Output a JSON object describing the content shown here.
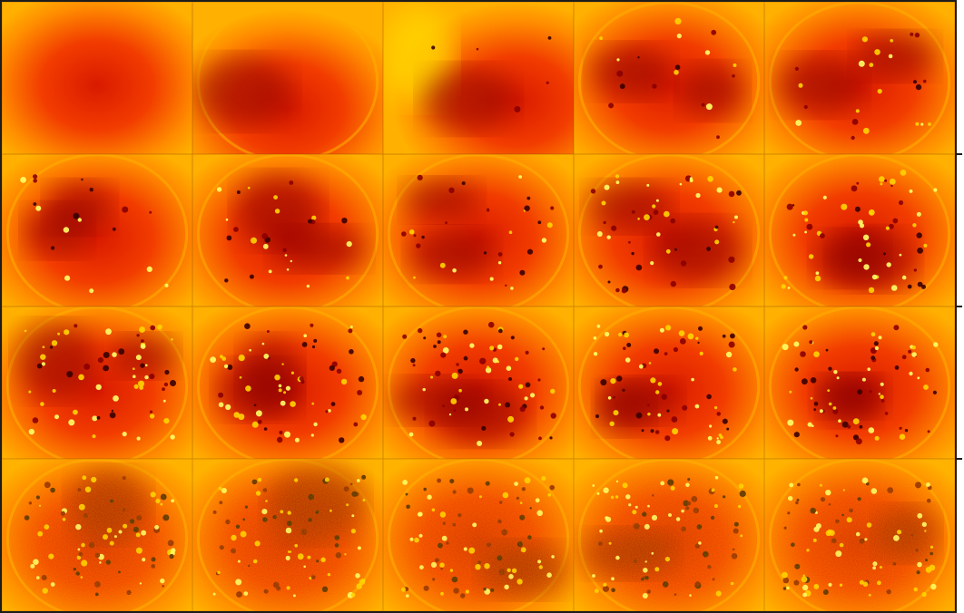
{
  "mosaic": {
    "rows": 4,
    "columns": 5,
    "colormap": {
      "name": "hot",
      "stops": [
        "#3a0000",
        "#8b0000",
        "#d91a00",
        "#f23c00",
        "#ff6a00",
        "#ff8c00",
        "#ffb000",
        "#ffd400",
        "#ffff66"
      ]
    },
    "frame_color": "#1c1c1c",
    "row_tick_marks": 3,
    "tiles": [
      {
        "id": "r1c1",
        "row": 1,
        "col": 1,
        "pattern": "smooth-vignette",
        "speckle_density": 0.0
      },
      {
        "id": "r1c2",
        "row": 1,
        "col": 2,
        "pattern": "smooth-rings",
        "speckle_density": 0.0
      },
      {
        "id": "r1c3",
        "row": 1,
        "col": 3,
        "pattern": "smooth-bright-left",
        "speckle_density": 0.05
      },
      {
        "id": "r1c4",
        "row": 1,
        "col": 4,
        "pattern": "ringed-disk",
        "speckle_density": 0.2
      },
      {
        "id": "r1c5",
        "row": 1,
        "col": 5,
        "pattern": "ringed-disk",
        "speckle_density": 0.25
      },
      {
        "id": "r2c1",
        "row": 2,
        "col": 1,
        "pattern": "patchy-disk",
        "speckle_density": 0.2
      },
      {
        "id": "r2c2",
        "row": 2,
        "col": 2,
        "pattern": "patchy-disk",
        "speckle_density": 0.3
      },
      {
        "id": "r2c3",
        "row": 2,
        "col": 3,
        "pattern": "patchy-disk",
        "speckle_density": 0.35
      },
      {
        "id": "r2c4",
        "row": 2,
        "col": 4,
        "pattern": "speckled-disk",
        "speckle_density": 0.55
      },
      {
        "id": "r2c5",
        "row": 2,
        "col": 5,
        "pattern": "speckled-disk",
        "speckle_density": 0.65
      },
      {
        "id": "r3c1",
        "row": 3,
        "col": 1,
        "pattern": "speckled-disk",
        "speckle_density": 0.7
      },
      {
        "id": "r3c2",
        "row": 3,
        "col": 2,
        "pattern": "speckled-disk",
        "speckle_density": 0.7
      },
      {
        "id": "r3c3",
        "row": 3,
        "col": 3,
        "pattern": "speckled-disk",
        "speckle_density": 0.75
      },
      {
        "id": "r3c4",
        "row": 3,
        "col": 4,
        "pattern": "speckled-disk",
        "speckle_density": 0.75
      },
      {
        "id": "r3c5",
        "row": 3,
        "col": 5,
        "pattern": "speckled-disk",
        "speckle_density": 0.8
      },
      {
        "id": "r4c1",
        "row": 4,
        "col": 1,
        "pattern": "speckled-noisy",
        "speckle_density": 0.85
      },
      {
        "id": "r4c2",
        "row": 4,
        "col": 2,
        "pattern": "speckled-noisy",
        "speckle_density": 0.9
      },
      {
        "id": "r4c3",
        "row": 4,
        "col": 3,
        "pattern": "speckled-noisy",
        "speckle_density": 0.9
      },
      {
        "id": "r4c4",
        "row": 4,
        "col": 4,
        "pattern": "speckled-noisy",
        "speckle_density": 0.9
      },
      {
        "id": "r4c5",
        "row": 4,
        "col": 5,
        "pattern": "speckled-noisy",
        "speckle_density": 0.95
      }
    ]
  }
}
